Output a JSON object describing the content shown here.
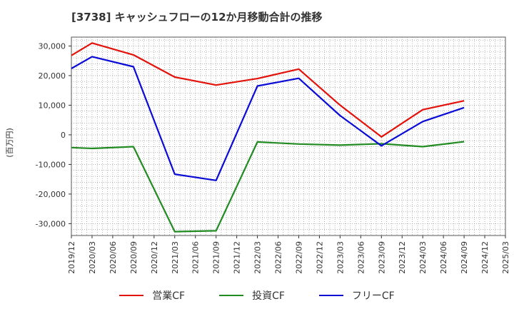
{
  "chart_data": {
    "type": "line",
    "title": "[3738]  キャッシュフローの12か月移動合計の推移",
    "ylabel": "(百万円)",
    "xlabel": "",
    "ylim": [
      -34000,
      33000
    ],
    "yticks": [
      30000,
      20000,
      10000,
      0,
      -10000,
      -20000,
      -30000
    ],
    "ytick_labels": [
      "30,000",
      "20,000",
      "10,000",
      "0",
      "-10,000",
      "-20,000",
      "-30,000"
    ],
    "categories": [
      "2019/12",
      "2020/03",
      "2020/06",
      "2020/09",
      "2020/12",
      "2021/03",
      "2021/06",
      "2021/09",
      "2021/12",
      "2022/03",
      "2022/06",
      "2022/09",
      "2022/12",
      "2023/03",
      "2023/06",
      "2023/09",
      "2023/12",
      "2024/03",
      "2024/06",
      "2024/09",
      "2024/12",
      "2025/03"
    ],
    "series": [
      {
        "name": "営業CF",
        "color": "#e3120b",
        "values": [
          26800,
          31000,
          null,
          27000,
          null,
          19500,
          null,
          16800,
          null,
          19000,
          null,
          22200,
          null,
          10000,
          null,
          -700,
          null,
          8500,
          null,
          11500,
          null,
          null
        ]
      },
      {
        "name": "投資CF",
        "color": "#228b22",
        "values": [
          -4300,
          -4600,
          null,
          -4000,
          null,
          -32700,
          null,
          -32400,
          null,
          -2400,
          null,
          -3100,
          null,
          -3500,
          null,
          -3000,
          null,
          -4000,
          null,
          -2300,
          null,
          null
        ]
      },
      {
        "name": "フリーCF",
        "color": "#0b0bd6",
        "values": [
          22400,
          26400,
          null,
          23000,
          null,
          -13300,
          null,
          -15400,
          null,
          16500,
          null,
          19100,
          null,
          6500,
          null,
          -3700,
          null,
          4500,
          null,
          9200,
          null,
          null
        ]
      }
    ],
    "grid": true,
    "legend": "bottom"
  }
}
